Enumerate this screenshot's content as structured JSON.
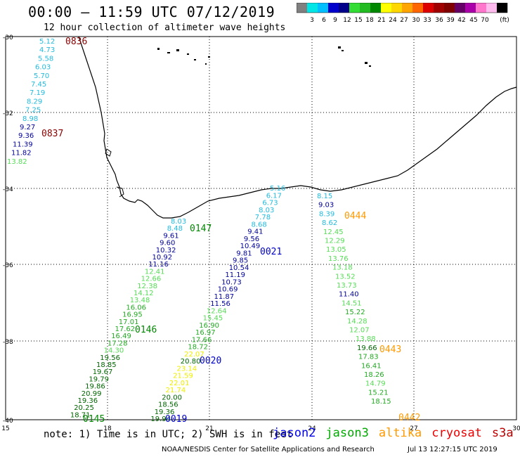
{
  "title": "00:00 – 11:59 UTC 07/12/2019",
  "subtitle": "12 hour collection of altimeter wave heights",
  "scale": {
    "colors": [
      "#808080",
      "#00e5e5",
      "#00bfff",
      "#0000cd",
      "#00008b",
      "#33dd33",
      "#22bb22",
      "#008800",
      "#ffff00",
      "#ffd700",
      "#ffa500",
      "#ff6600",
      "#dd0000",
      "#a00000",
      "#800000",
      "#660066",
      "#aa00aa",
      "#ff77cc",
      "#ffbbee",
      "#000000"
    ],
    "labels": [
      "3",
      "6",
      "9",
      "12",
      "15",
      "18",
      "21",
      "24",
      "27",
      "30",
      "33",
      "36",
      "39",
      "42",
      "45",
      "70"
    ],
    "unit": "(ft)"
  },
  "lat_labels": [
    "-30",
    "-32",
    "-34",
    "-36",
    "-38",
    "-40"
  ],
  "lon_labels": [
    "15",
    "18",
    "21",
    "24",
    "27",
    "30"
  ],
  "tracks": [
    {
      "id": "west_jason2",
      "values": [
        {
          "v": "5.12",
          "c": "#22bbdd"
        },
        {
          "v": "4.73",
          "c": "#22bbdd"
        },
        {
          "v": "5.58",
          "c": "#22bbdd"
        },
        {
          "v": "6.03",
          "c": "#22bbdd"
        },
        {
          "v": "5.70",
          "c": "#22bbdd"
        },
        {
          "v": "7.45",
          "c": "#22bbdd"
        },
        {
          "v": "7.19",
          "c": "#22bbdd"
        },
        {
          "v": "8.29",
          "c": "#22bbdd"
        },
        {
          "v": "7.25",
          "c": "#22bbdd"
        },
        {
          "v": "8.98",
          "c": "#22bbdd"
        },
        {
          "v": "9.27",
          "c": "#000099"
        },
        {
          "v": "9.36",
          "c": "#000099"
        },
        {
          "v": "11.39",
          "c": "#000099"
        },
        {
          "v": "11.82",
          "c": "#000099"
        },
        {
          "v": "13.82",
          "c": "#55dd55"
        }
      ]
    },
    {
      "id": "jason3_left",
      "values": [
        {
          "v": "8.03",
          "c": "#22bbdd"
        },
        {
          "v": "8.48",
          "c": "#22bbdd"
        },
        {
          "v": "9.61",
          "c": "#000099"
        },
        {
          "v": "9.60",
          "c": "#000099"
        },
        {
          "v": "10.32",
          "c": "#000099"
        },
        {
          "v": "10.92",
          "c": "#000099"
        },
        {
          "v": "11.16",
          "c": "#000099"
        },
        {
          "v": "12.41",
          "c": "#55dd55"
        },
        {
          "v": "12.66",
          "c": "#55dd55"
        },
        {
          "v": "12.38",
          "c": "#55dd55"
        },
        {
          "v": "14.12",
          "c": "#55dd55"
        },
        {
          "v": "13.48",
          "c": "#55dd55"
        },
        {
          "v": "16.06",
          "c": "#22aa22"
        },
        {
          "v": "16.95",
          "c": "#22aa22"
        },
        {
          "v": "17.01",
          "c": "#22aa22"
        },
        {
          "v": "17.62",
          "c": "#22aa22"
        },
        {
          "v": "16.49",
          "c": "#22aa22"
        },
        {
          "v": "17.28",
          "c": "#22aa22"
        },
        {
          "v": "14.30",
          "c": "#55dd55"
        },
        {
          "v": "19.56",
          "c": "#006600"
        },
        {
          "v": "18.85",
          "c": "#006600"
        },
        {
          "v": "19.67",
          "c": "#006600"
        },
        {
          "v": "19.79",
          "c": "#006600"
        },
        {
          "v": "19.86",
          "c": "#006600"
        },
        {
          "v": "20.99",
          "c": "#006600"
        },
        {
          "v": "19.36",
          "c": "#006600"
        },
        {
          "v": "20.25",
          "c": "#006600"
        },
        {
          "v": "18.71",
          "c": "#006600"
        }
      ]
    },
    {
      "id": "jason2_mid",
      "values": [
        {
          "v": "5.16",
          "c": "#22bbdd"
        },
        {
          "v": "6.17",
          "c": "#22bbdd"
        },
        {
          "v": "6.73",
          "c": "#22bbdd"
        },
        {
          "v": "8.03",
          "c": "#22bbdd"
        },
        {
          "v": "7.78",
          "c": "#22bbdd"
        },
        {
          "v": "8.68",
          "c": "#22bbdd"
        },
        {
          "v": "9.41",
          "c": "#000099"
        },
        {
          "v": "9.56",
          "c": "#000099"
        },
        {
          "v": "10.49",
          "c": "#000099"
        },
        {
          "v": "9.81",
          "c": "#000099"
        },
        {
          "v": "9.85",
          "c": "#000099"
        },
        {
          "v": "10.54",
          "c": "#000099"
        },
        {
          "v": "11.19",
          "c": "#000099"
        },
        {
          "v": "10.73",
          "c": "#000099"
        },
        {
          "v": "10.69",
          "c": "#000099"
        },
        {
          "v": "11.87",
          "c": "#000099"
        },
        {
          "v": "11.56",
          "c": "#000099"
        },
        {
          "v": "12.64",
          "c": "#55dd55"
        },
        {
          "v": "15.45",
          "c": "#55dd55"
        },
        {
          "v": "16.90",
          "c": "#22aa22"
        },
        {
          "v": "16.97",
          "c": "#22aa22"
        },
        {
          "v": "17.66",
          "c": "#22aa22"
        },
        {
          "v": "18.72",
          "c": "#22aa22"
        },
        {
          "v": "22.07",
          "c": "#eeee00"
        },
        {
          "v": "20.80",
          "c": "#006600"
        },
        {
          "v": "23.14",
          "c": "#eeee00"
        },
        {
          "v": "21.59",
          "c": "#eeee00"
        },
        {
          "v": "22.01",
          "c": "#eeee00"
        },
        {
          "v": "21.74",
          "c": "#eeee00"
        },
        {
          "v": "20.00",
          "c": "#006600"
        },
        {
          "v": "18.56",
          "c": "#006600"
        },
        {
          "v": "19.36",
          "c": "#006600"
        },
        {
          "v": "19.94",
          "c": "#006600"
        }
      ]
    },
    {
      "id": "altika_east",
      "values": [
        {
          "v": "8.15",
          "c": "#22bbdd"
        },
        {
          "v": "9.03",
          "c": "#000099"
        },
        {
          "v": "8.39",
          "c": "#22bbdd"
        },
        {
          "v": "8.62",
          "c": "#22bbdd"
        },
        {
          "v": "12.45",
          "c": "#55dd55"
        },
        {
          "v": "12.29",
          "c": "#55dd55"
        },
        {
          "v": "13.05",
          "c": "#55dd55"
        },
        {
          "v": "13.76",
          "c": "#55dd55"
        },
        {
          "v": "13.18",
          "c": "#55dd55"
        },
        {
          "v": "13.52",
          "c": "#55dd55"
        },
        {
          "v": "13.73",
          "c": "#55dd55"
        },
        {
          "v": "11.40",
          "c": "#000099"
        },
        {
          "v": "14.51",
          "c": "#55dd55"
        },
        {
          "v": "15.22",
          "c": "#22aa22"
        },
        {
          "v": "14.28",
          "c": "#55dd55"
        },
        {
          "v": "12.07",
          "c": "#55dd55"
        },
        {
          "v": "13.88",
          "c": "#55dd55"
        },
        {
          "v": "19.66",
          "c": "#006600"
        },
        {
          "v": "17.83",
          "c": "#22aa22"
        },
        {
          "v": "16.41",
          "c": "#22aa22"
        },
        {
          "v": "18.26",
          "c": "#22aa22"
        },
        {
          "v": "14.79",
          "c": "#55dd55"
        },
        {
          "v": "15.21",
          "c": "#22aa22"
        },
        {
          "v": "18.15",
          "c": "#22aa22"
        }
      ]
    }
  ],
  "time_labels": [
    {
      "t": "0836",
      "c": "#880000"
    },
    {
      "t": "0837",
      "c": "#880000"
    },
    {
      "t": "0147",
      "c": "#008800"
    },
    {
      "t": "0146",
      "c": "#008800"
    },
    {
      "t": "0145",
      "c": "#008800"
    },
    {
      "t": "0021",
      "c": "#0000cc"
    },
    {
      "t": "0020",
      "c": "#0000cc"
    },
    {
      "t": "0019",
      "c": "#0000cc"
    },
    {
      "t": "0444",
      "c": "#ff9900"
    },
    {
      "t": "0443",
      "c": "#ff9900"
    },
    {
      "t": "0442",
      "c": "#ff9900"
    }
  ],
  "footnote": "note: 1) Time is in UTC; 2) SWH is in feet",
  "legend": [
    {
      "name": "jason2",
      "color": "#0000ee"
    },
    {
      "name": "jason3",
      "color": "#00aa00"
    },
    {
      "name": "altika",
      "color": "#ff9900"
    },
    {
      "name": "cryosat",
      "color": "#ee0000"
    },
    {
      "name": "s3a",
      "color": "#bb0000"
    }
  ],
  "credit": "NOAA/NESDIS Center for Satellite Applications and Research",
  "timestamp": "Jul 13 12:27:15 UTC 2019"
}
